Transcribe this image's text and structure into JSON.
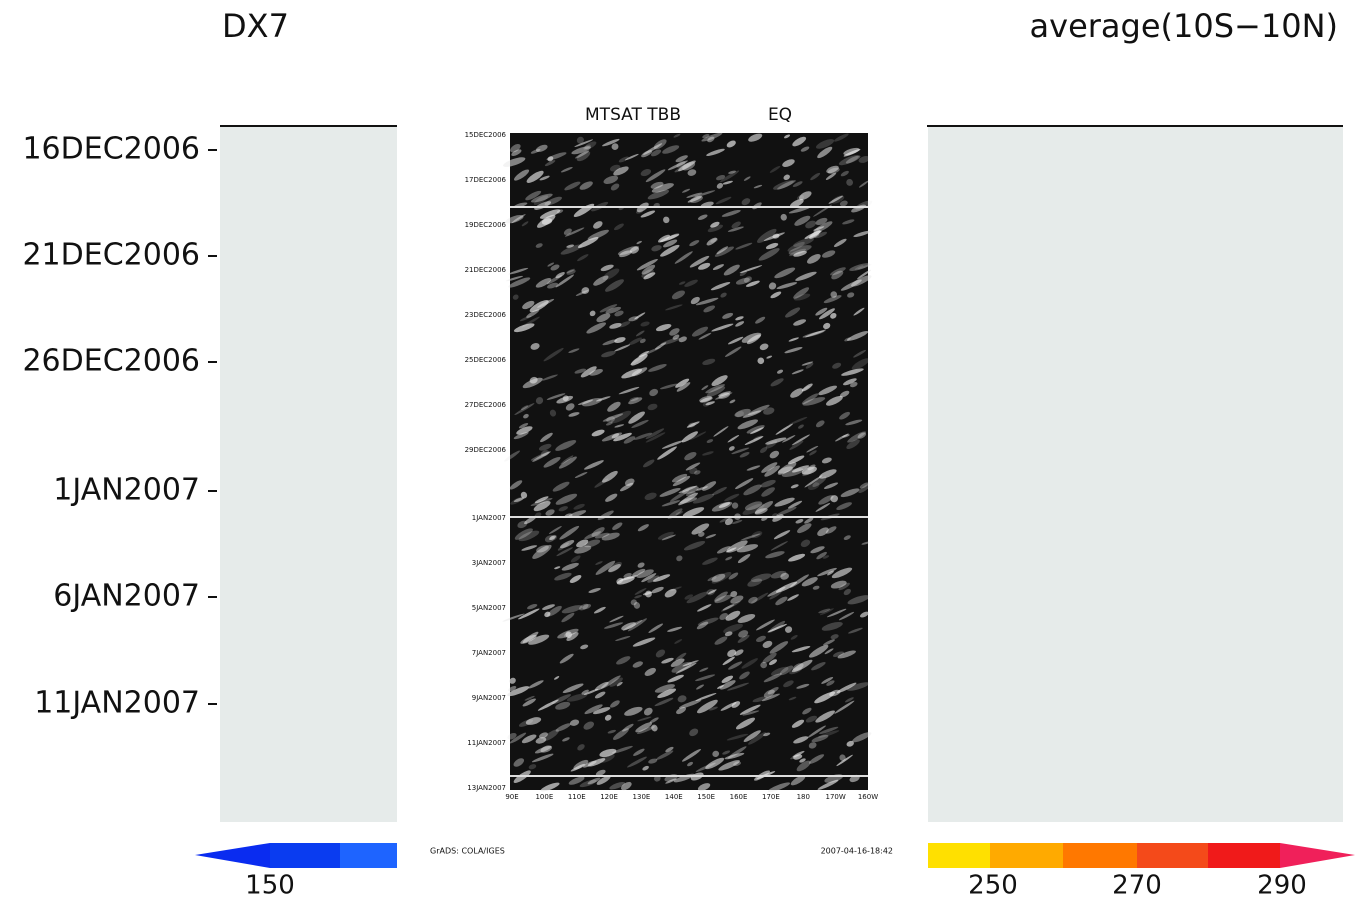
{
  "background": {
    "title_left": "DX7",
    "title_right": "average(10S−10N)",
    "y_labels": [
      "16DEC2006",
      "21DEC2006",
      "26DEC2006",
      "1JAN2007",
      "6JAN2007",
      "11JAN2007"
    ],
    "colorbar_labels": [
      "150",
      "250",
      "270",
      "290"
    ]
  },
  "overlay": {
    "title": "MTSAT TBB",
    "subtitle": "EQ",
    "y_labels": [
      "15DEC2006",
      "17DEC2006",
      "19DEC2006",
      "21DEC2006",
      "23DEC2006",
      "25DEC2006",
      "27DEC2006",
      "29DEC2006",
      "1JAN2007",
      "3JAN2007",
      "5JAN2007",
      "7JAN2007",
      "9JAN2007",
      "11JAN2007",
      "13JAN2007"
    ],
    "x_labels": [
      "90E",
      "100E",
      "110E",
      "120E",
      "130E",
      "140E",
      "150E",
      "160E",
      "170E",
      "180",
      "170W",
      "160W"
    ],
    "footer_left": "GrADS: COLA/IGES",
    "footer_right": "2007-04-16-18:42"
  }
}
